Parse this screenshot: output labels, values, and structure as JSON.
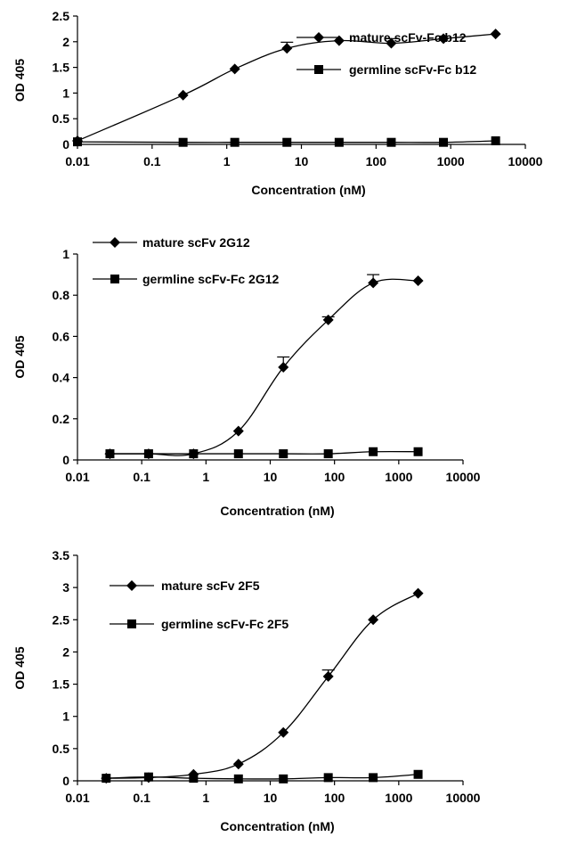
{
  "chart_data": [
    {
      "type": "line",
      "xscale": "log",
      "xlabel": "Concentration (nM)",
      "ylabel": "OD 405",
      "xlim": [
        0.01,
        10000
      ],
      "ylim": [
        0,
        2.5
      ],
      "x_ticks": [
        "0.01",
        "0.1",
        "1",
        "10",
        "100",
        "1000",
        "10000"
      ],
      "y_ticks": [
        "0",
        "0.5",
        "1",
        "1.5",
        "2",
        "2.5"
      ],
      "grid": false,
      "legend_position": "right",
      "series": [
        {
          "name": "mature  scFv-Fc b12",
          "marker": "diamond",
          "x": [
            0.01,
            0.26,
            1.28,
            6.4,
            32,
            160,
            800,
            4000
          ],
          "y": [
            0.07,
            0.96,
            1.47,
            1.87,
            2.02,
            1.97,
            2.06,
            2.15
          ],
          "error": [
            0,
            0,
            0,
            0.12,
            0,
            0.09,
            0.05,
            0
          ]
        },
        {
          "name": "germline scFv-Fc b12",
          "marker": "square",
          "x": [
            0.01,
            0.26,
            1.28,
            6.4,
            32,
            160,
            800,
            4000
          ],
          "y": [
            0.05,
            0.04,
            0.04,
            0.04,
            0.04,
            0.04,
            0.04,
            0.07
          ],
          "error": [
            0,
            0,
            0,
            0,
            0,
            0,
            0,
            0
          ]
        }
      ]
    },
    {
      "type": "line",
      "xscale": "log",
      "xlabel": "Concentration (nM)",
      "ylabel": "OD 405",
      "xlim": [
        0.01,
        10000
      ],
      "ylim": [
        0,
        1
      ],
      "x_ticks": [
        "0.01",
        "0.1",
        "1",
        "10",
        "100",
        "1000",
        "10000"
      ],
      "y_ticks": [
        "0",
        "0.2",
        "0.4",
        "0.6",
        "0.8",
        "1"
      ],
      "grid": false,
      "legend_position": "top-left",
      "series": [
        {
          "name": "mature scFv 2G12",
          "marker": "diamond",
          "x": [
            0.032,
            0.128,
            0.64,
            3.2,
            16,
            80,
            400,
            2000
          ],
          "y": [
            0.03,
            0.03,
            0.03,
            0.14,
            0.45,
            0.68,
            0.86,
            0.87
          ],
          "error": [
            0,
            0,
            0,
            0,
            0.05,
            0.015,
            0.04,
            0
          ]
        },
        {
          "name": "germline scFv-Fc 2G12",
          "marker": "square",
          "x": [
            0.032,
            0.128,
            0.64,
            3.2,
            16,
            80,
            400,
            2000
          ],
          "y": [
            0.03,
            0.03,
            0.03,
            0.03,
            0.03,
            0.03,
            0.04,
            0.04
          ],
          "error": [
            0,
            0,
            0,
            0,
            0,
            0,
            0,
            0
          ]
        }
      ]
    },
    {
      "type": "line",
      "xscale": "log",
      "xlabel": "Concentration (nM)",
      "ylabel": "OD 405",
      "xlim": [
        0.01,
        10000
      ],
      "ylim": [
        0,
        3.5
      ],
      "x_ticks": [
        "0.01",
        "0.1",
        "1",
        "10",
        "100",
        "1000",
        "10000"
      ],
      "y_ticks": [
        "0",
        "0.5",
        "1",
        "1.5",
        "2",
        "2.5",
        "3",
        "3.5"
      ],
      "grid": false,
      "legend_position": "top-left",
      "series": [
        {
          "name": "mature scFv 2F5",
          "marker": "diamond",
          "x": [
            0.028,
            0.128,
            0.64,
            3.2,
            16,
            80,
            400,
            2000
          ],
          "y": [
            0.04,
            0.05,
            0.1,
            0.26,
            0.75,
            1.62,
            2.5,
            2.91
          ],
          "error": [
            0,
            0,
            0,
            0,
            0,
            0.1,
            0,
            0
          ]
        },
        {
          "name": "germline scFv-Fc 2F5",
          "marker": "square",
          "x": [
            0.028,
            0.128,
            0.64,
            3.2,
            16,
            80,
            400,
            2000
          ],
          "y": [
            0.04,
            0.06,
            0.04,
            0.03,
            0.03,
            0.05,
            0.05,
            0.1
          ],
          "error": [
            0,
            0,
            0,
            0,
            0,
            0,
            0,
            0
          ]
        }
      ]
    }
  ]
}
